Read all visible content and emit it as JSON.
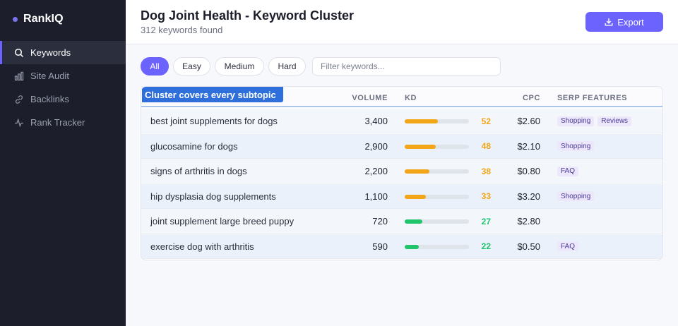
{
  "app": {
    "name": "RankIQ",
    "accent": "#6c63ff"
  },
  "sidebar": {
    "items": [
      {
        "label": "Keywords",
        "icon": "search-icon",
        "active": true
      },
      {
        "label": "Site Audit",
        "icon": "bar-chart-icon",
        "active": false
      },
      {
        "label": "Backlinks",
        "icon": "link-icon",
        "active": false
      },
      {
        "label": "Rank Tracker",
        "icon": "pulse-icon",
        "active": false
      }
    ]
  },
  "header": {
    "title": "Dog Joint Health - Keyword Cluster",
    "subtitle": "312 keywords found",
    "export_label": "Export"
  },
  "filters": {
    "chips": [
      "All",
      "Easy",
      "Medium",
      "Hard"
    ],
    "active": "All",
    "search_placeholder": "Filter keywords...",
    "search_value": ""
  },
  "table": {
    "cluster_label": "Cluster covers every subtopic",
    "columns": [
      "VOLUME",
      "KD",
      "CPC",
      "SERP FEATURES"
    ],
    "rows": [
      {
        "keyword": "best joint supplements for dogs",
        "volume": "3,400",
        "kd": 52,
        "cpc": "$2.60",
        "serp": [
          "Shopping",
          "Reviews"
        ]
      },
      {
        "keyword": "glucosamine for dogs",
        "volume": "2,900",
        "kd": 48,
        "cpc": "$2.10",
        "serp": [
          "Shopping"
        ]
      },
      {
        "keyword": "signs of arthritis in dogs",
        "volume": "2,200",
        "kd": 38,
        "cpc": "$0.80",
        "serp": [
          "FAQ"
        ]
      },
      {
        "keyword": "hip dysplasia dog supplements",
        "volume": "1,100",
        "kd": 33,
        "cpc": "$3.20",
        "serp": [
          "Shopping"
        ]
      },
      {
        "keyword": "joint supplement large breed puppy",
        "volume": "720",
        "kd": 27,
        "cpc": "$2.80",
        "serp": []
      },
      {
        "keyword": "exercise dog with arthritis",
        "volume": "590",
        "kd": 22,
        "cpc": "$0.50",
        "serp": [
          "FAQ"
        ]
      }
    ]
  },
  "colors": {
    "kd_medium": "#f2a516",
    "kd_easy": "#1fc46b"
  }
}
